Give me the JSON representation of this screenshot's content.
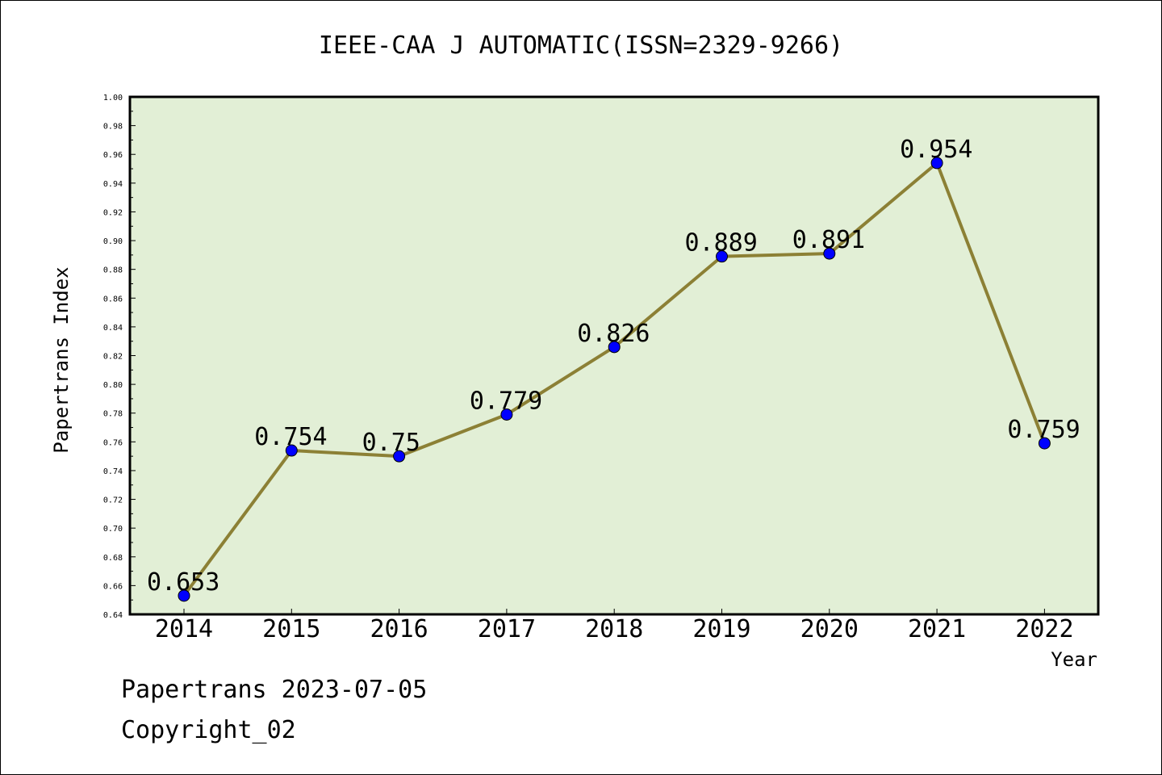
{
  "chart_data": {
    "type": "line",
    "title": "IEEE-CAA J AUTOMATIC(ISSN=2329-9266)",
    "xlabel": "Year",
    "ylabel": "Papertrans Index",
    "categories": [
      "2014",
      "2015",
      "2016",
      "2017",
      "2018",
      "2019",
      "2020",
      "2021",
      "2022"
    ],
    "series": [
      {
        "values": [
          0.653,
          0.754,
          0.75,
          0.779,
          0.826,
          0.889,
          0.891,
          0.954,
          0.759
        ],
        "data_labels": [
          "0.653",
          "0.754",
          "0.75",
          "0.779",
          "0.826",
          "0.889",
          "0.891",
          "0.954",
          "0.759"
        ]
      }
    ],
    "ylim": [
      0.64,
      1.0
    ],
    "yticks": [
      "0.64",
      "0.66",
      "0.68",
      "0.70",
      "0.72",
      "0.74",
      "0.76",
      "0.78",
      "0.80",
      "0.82",
      "0.84",
      "0.86",
      "0.88",
      "0.90",
      "0.92",
      "0.94",
      "0.96",
      "0.98",
      "1.00"
    ],
    "grid": false,
    "legend": "none",
    "colors": {
      "plot_background": "#e2efd6",
      "line": "#8c8035",
      "marker": "#0000ff"
    }
  },
  "footer": {
    "line1": "Papertrans 2023-07-05",
    "line2": "Copyright_02"
  }
}
